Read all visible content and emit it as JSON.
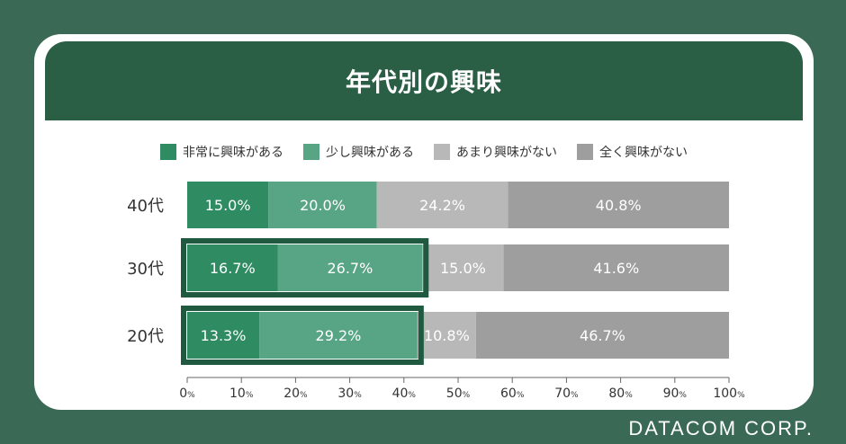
{
  "title": "年代別の興味",
  "brand": "DATACOM CORP.",
  "colors": {
    "background": "#3a6a56",
    "title_band": "#2a5f45",
    "highlight": "#1f5a40",
    "segment_1": "#2e8b62",
    "segment_2": "#58a585",
    "segment_3": "#b8b8b8",
    "segment_4": "#9e9e9e"
  },
  "chart_data": {
    "type": "bar",
    "orientation": "horizontal",
    "stacked": true,
    "categories": [
      "40代",
      "30代",
      "20代"
    ],
    "series": [
      {
        "name": "非常に興味がある",
        "values": [
          15.0,
          16.7,
          13.3
        ],
        "labels": [
          "15.0%",
          "16.7%",
          "13.3%"
        ]
      },
      {
        "name": "少し興味がある",
        "values": [
          20.0,
          26.7,
          29.2
        ],
        "labels": [
          "20.0%",
          "26.7%",
          "29.2%"
        ]
      },
      {
        "name": "あまり興味がない",
        "values": [
          24.2,
          15.0,
          10.8
        ],
        "labels": [
          "24.2%",
          "15.0%",
          "10.8%"
        ]
      },
      {
        "name": "全く興味がない",
        "values": [
          40.8,
          41.6,
          46.7
        ],
        "labels": [
          "40.8%",
          "41.6%",
          "46.7%"
        ]
      }
    ],
    "xlim": [
      0,
      100
    ],
    "xticks": [
      0,
      10,
      20,
      30,
      40,
      50,
      60,
      70,
      80,
      90,
      100
    ],
    "xtick_number_labels": [
      "0",
      "10",
      "20",
      "30",
      "40",
      "50",
      "60",
      "70",
      "80",
      "90",
      "100"
    ],
    "xtick_unit": "%",
    "highlighted_categories": [
      "30代",
      "20代"
    ],
    "legend_position": "top",
    "grid": false
  }
}
